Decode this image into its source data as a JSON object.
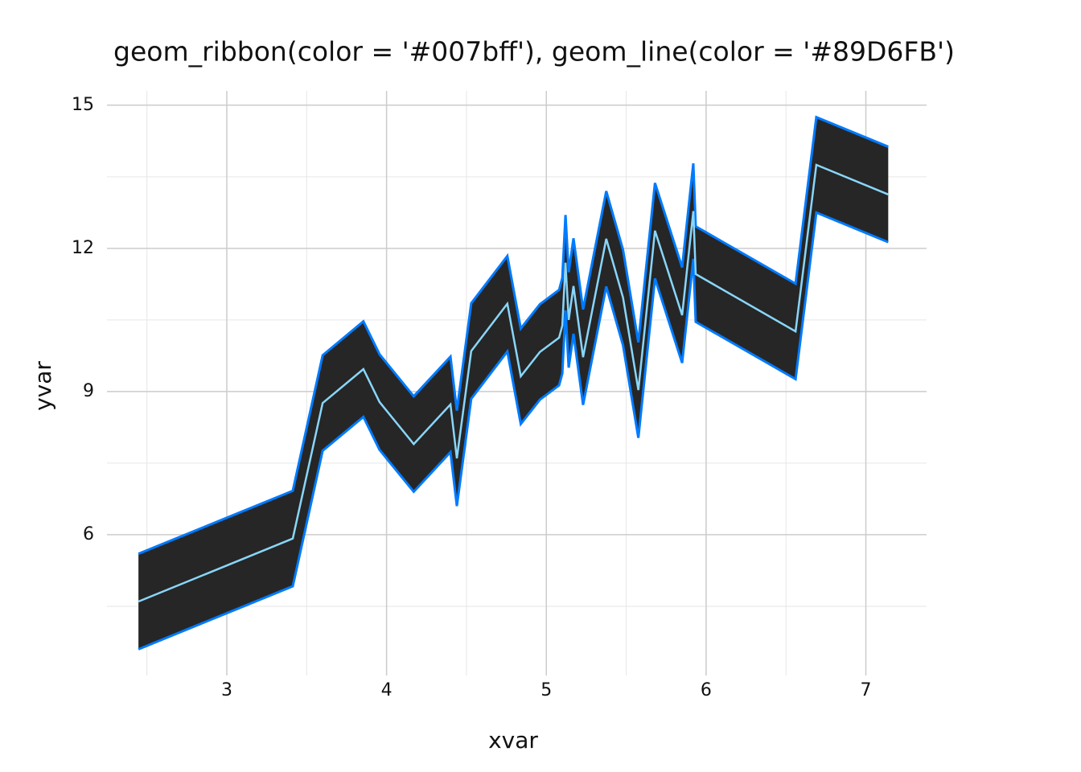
{
  "chart_data": {
    "type": "ribbon",
    "title": "geom_ribbon(color = '#007bff'), geom_line(color = '#89D6FB')",
    "x_label": "xvar",
    "y_label": "yvar",
    "x": [
      2.447,
      3.413,
      3.6,
      3.855,
      3.956,
      4.17,
      4.4,
      4.44,
      4.53,
      4.756,
      4.84,
      4.96,
      5.08,
      5.1,
      5.12,
      5.14,
      5.17,
      5.23,
      5.375,
      5.48,
      5.576,
      5.68,
      5.85,
      5.92,
      5.935,
      6.56,
      6.69,
      7.14
    ],
    "y": [
      4.6,
      5.92,
      8.76,
      9.47,
      8.78,
      7.9,
      8.73,
      7.6,
      9.85,
      10.84,
      9.32,
      9.83,
      10.13,
      10.38,
      11.7,
      10.5,
      11.21,
      9.72,
      12.2,
      10.97,
      9.03,
      12.37,
      10.6,
      12.78,
      11.46,
      10.26,
      13.75,
      13.13
    ],
    "ymin": [
      3.6,
      4.92,
      7.76,
      8.47,
      7.78,
      6.9,
      7.73,
      6.6,
      8.85,
      9.84,
      8.32,
      8.83,
      9.13,
      9.38,
      10.7,
      9.5,
      10.21,
      8.72,
      11.2,
      9.97,
      8.03,
      11.37,
      9.6,
      11.78,
      10.46,
      9.26,
      12.75,
      12.13
    ],
    "ymax": [
      5.6,
      6.92,
      9.76,
      10.47,
      9.78,
      8.9,
      9.73,
      8.6,
      10.85,
      11.84,
      10.32,
      10.83,
      11.13,
      11.38,
      12.7,
      11.5,
      12.21,
      10.72,
      13.2,
      11.97,
      10.03,
      13.37,
      11.6,
      13.78,
      12.46,
      11.26,
      14.75,
      14.13
    ],
    "ribbon_color": "#007bff",
    "ribbon_fill": "#262626",
    "line_color": "#89D6FB",
    "xlim": [
      2.25,
      7.38
    ],
    "ylim": [
      3.05,
      15.3
    ],
    "xticks": [
      3,
      4,
      5,
      6,
      7
    ],
    "yticks": [
      6,
      9,
      12,
      15
    ],
    "xminor": [
      2.5,
      3.5,
      4.5,
      5.5,
      6.5
    ],
    "yminor": [
      4.5,
      7.5,
      10.5,
      13.5
    ],
    "grid": true
  }
}
